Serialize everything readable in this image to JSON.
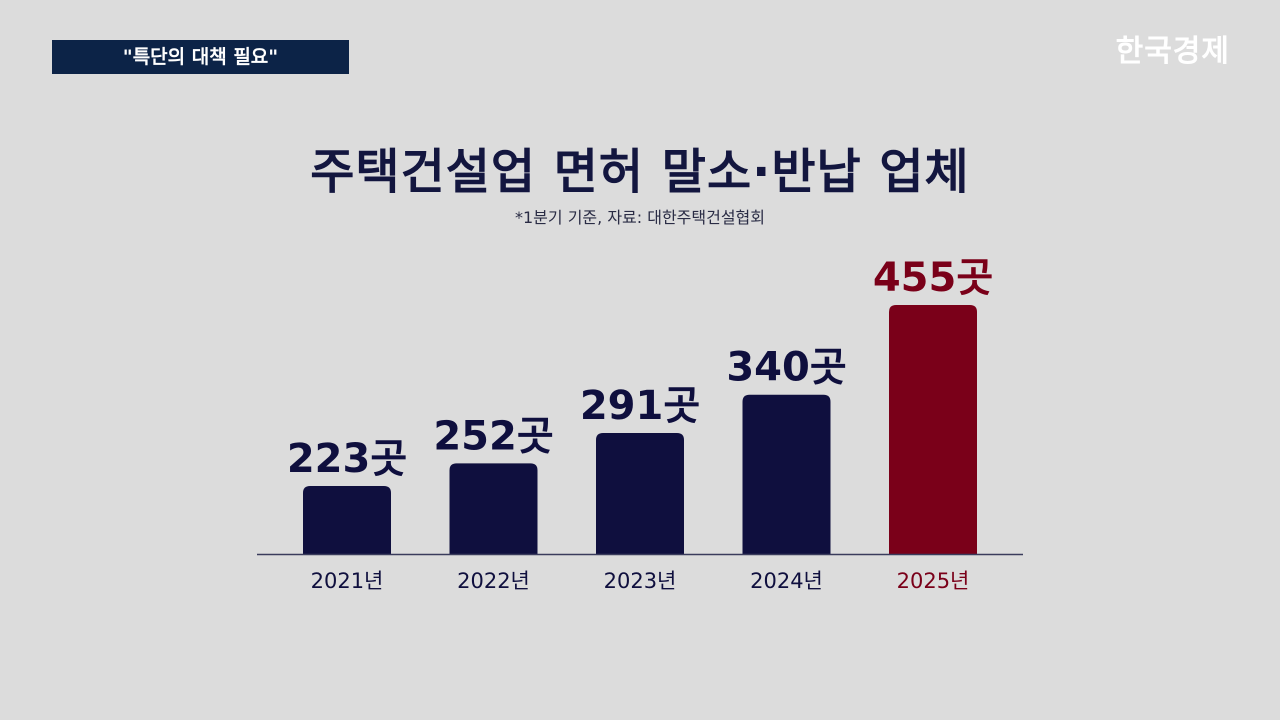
{
  "header": {
    "tag": "\"특단의 대책 필요\"",
    "logo_text": "한국경제"
  },
  "colors": {
    "default_bar": "#0f0f3e",
    "highlight_bar": "#7a0019",
    "axis": "#3a3c5c"
  },
  "chart_data": {
    "type": "bar",
    "title": "주택건설업 면허 말소·반납 업체",
    "subtitle": "*1분기 기준, 자료: 대한주택건설협회",
    "categories": [
      "2021년",
      "2022년",
      "2023년",
      "2024년",
      "2025년"
    ],
    "values": [
      223,
      252,
      291,
      340,
      455
    ],
    "value_labels": [
      "223곳",
      "252곳",
      "291곳",
      "340곳",
      "455곳"
    ],
    "highlight_index": 4,
    "ylim": [
      200,
      455
    ],
    "grid": false,
    "legend": "none"
  }
}
